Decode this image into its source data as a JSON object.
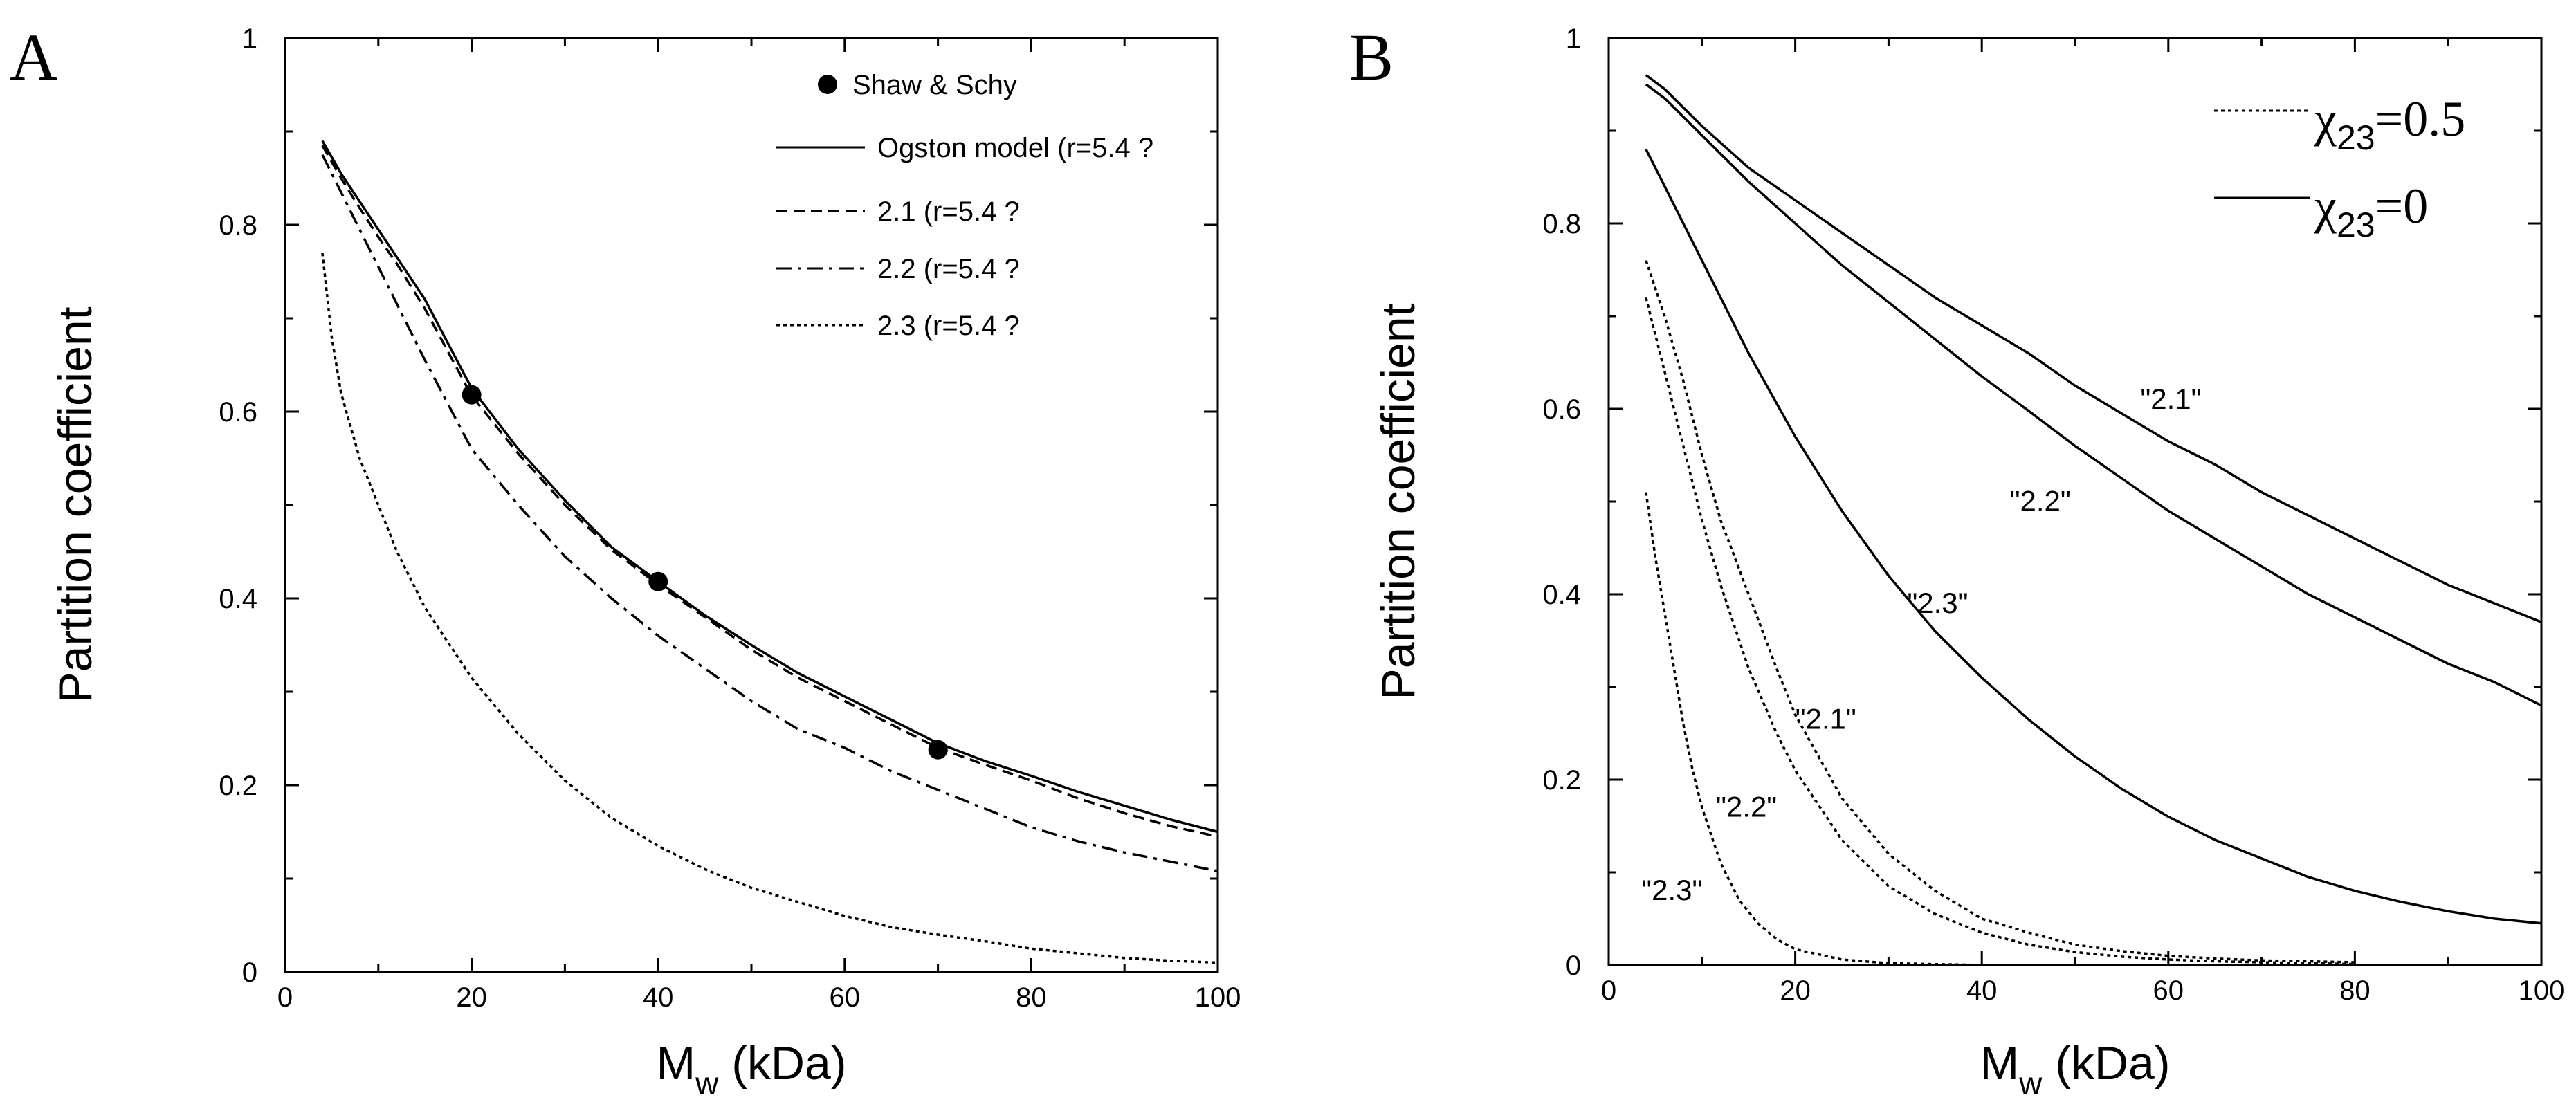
{
  "chart_data": [
    {
      "panel_label": "A",
      "type": "line",
      "xlabel_main": "M",
      "xlabel_sub": "w",
      "xlabel_rest": " (kDa)",
      "ylabel": "Partition coefficient",
      "xlim": [
        0,
        100
      ],
      "ylim": [
        0,
        1
      ],
      "xticks": [
        "0",
        "20",
        "40",
        "60",
        "80",
        "100"
      ],
      "yticks": [
        "0",
        "0.2",
        "0.4",
        "0.6",
        "0.8",
        "1"
      ],
      "legend_position": "top-right",
      "points": {
        "name": "Shaw & Schy",
        "x": [
          20,
          40,
          70
        ],
        "y": [
          0.618,
          0.418,
          0.238
        ]
      },
      "series": [
        {
          "name": "Ogston model (r=5.4 ?",
          "style": "solid",
          "x": [
            4,
            6,
            8,
            10,
            12,
            15,
            20,
            25,
            30,
            35,
            40,
            45,
            50,
            55,
            60,
            65,
            70,
            75,
            80,
            85,
            90,
            95,
            100
          ],
          "values": [
            0.89,
            0.855,
            0.825,
            0.795,
            0.765,
            0.72,
            0.625,
            0.56,
            0.505,
            0.455,
            0.418,
            0.382,
            0.35,
            0.32,
            0.295,
            0.27,
            0.245,
            0.226,
            0.21,
            0.193,
            0.178,
            0.163,
            0.15
          ]
        },
        {
          "name": "2.1 (r=5.4 ?",
          "style": "dashed",
          "x": [
            4,
            6,
            8,
            10,
            12,
            15,
            20,
            25,
            30,
            35,
            40,
            45,
            50,
            55,
            60,
            65,
            70,
            75,
            80,
            85,
            90,
            95,
            100
          ],
          "values": [
            0.885,
            0.85,
            0.818,
            0.787,
            0.758,
            0.71,
            0.617,
            0.555,
            0.5,
            0.452,
            0.415,
            0.38,
            0.345,
            0.315,
            0.29,
            0.265,
            0.24,
            0.222,
            0.205,
            0.186,
            0.17,
            0.156,
            0.145
          ]
        },
        {
          "name": "2.2 (r=5.4 ?",
          "style": "dashdot",
          "x": [
            4,
            6,
            8,
            10,
            12,
            15,
            20,
            25,
            30,
            35,
            40,
            45,
            50,
            55,
            60,
            65,
            70,
            75,
            80,
            85,
            90,
            95,
            100
          ],
          "values": [
            0.875,
            0.835,
            0.795,
            0.755,
            0.715,
            0.655,
            0.56,
            0.5,
            0.445,
            0.4,
            0.36,
            0.325,
            0.29,
            0.26,
            0.24,
            0.215,
            0.195,
            0.175,
            0.155,
            0.14,
            0.128,
            0.118,
            0.108
          ]
        },
        {
          "name": "2.3 (r=5.4 ?",
          "style": "dotted",
          "x": [
            4,
            5,
            6,
            8,
            10,
            12,
            15,
            20,
            25,
            30,
            35,
            40,
            45,
            50,
            55,
            60,
            65,
            70,
            75,
            80,
            85,
            90,
            95,
            100
          ],
          "values": [
            0.77,
            0.68,
            0.62,
            0.55,
            0.5,
            0.45,
            0.39,
            0.315,
            0.255,
            0.205,
            0.165,
            0.135,
            0.11,
            0.09,
            0.075,
            0.06,
            0.048,
            0.04,
            0.033,
            0.025,
            0.02,
            0.015,
            0.012,
            0.01
          ]
        }
      ]
    },
    {
      "panel_label": "B",
      "type": "line",
      "xlabel_main": "M",
      "xlabel_sub": "w",
      "xlabel_rest": " (kDa)",
      "ylabel": "Partition coefficient",
      "xlim": [
        0,
        100
      ],
      "ylim": [
        0,
        1
      ],
      "xticks": [
        "0",
        "20",
        "40",
        "60",
        "80",
        "100"
      ],
      "yticks": [
        "0",
        "0.2",
        "0.4",
        "0.6",
        "0.8",
        "1"
      ],
      "legend_position": "top-right",
      "legend": [
        {
          "style": "dotted",
          "symbol": "χ",
          "sub": "23",
          "value": "=0.5"
        },
        {
          "style": "solid",
          "symbol": "χ",
          "sub": "23",
          "value": "=0"
        }
      ],
      "annotations": [
        {
          "text": "\"2.1\"",
          "x": 57,
          "y": 0.6
        },
        {
          "text": "\"2.2\"",
          "x": 43,
          "y": 0.49
        },
        {
          "text": "\"2.3\"",
          "x": 32,
          "y": 0.38
        },
        {
          "text": "\"2.1\"",
          "x": 20,
          "y": 0.255
        },
        {
          "text": "\"2.2\"",
          "x": 11.5,
          "y": 0.16
        },
        {
          "text": "\"2.3\"",
          "x": 3.5,
          "y": 0.07
        }
      ],
      "series": [
        {
          "name": "\"2.1\" χ23=0",
          "style": "solid",
          "x": [
            4,
            6,
            8,
            10,
            15,
            20,
            25,
            30,
            35,
            40,
            45,
            50,
            55,
            60,
            65,
            70,
            75,
            80,
            85,
            90,
            95,
            100
          ],
          "values": [
            0.96,
            0.945,
            0.925,
            0.905,
            0.86,
            0.825,
            0.79,
            0.755,
            0.72,
            0.69,
            0.66,
            0.625,
            0.595,
            0.565,
            0.54,
            0.51,
            0.485,
            0.46,
            0.435,
            0.41,
            0.39,
            0.37
          ]
        },
        {
          "name": "\"2.2\" χ23=0",
          "style": "solid",
          "x": [
            4,
            6,
            8,
            10,
            15,
            20,
            25,
            30,
            35,
            40,
            45,
            50,
            55,
            60,
            65,
            70,
            75,
            80,
            85,
            90,
            95,
            100
          ],
          "values": [
            0.95,
            0.935,
            0.915,
            0.895,
            0.845,
            0.8,
            0.755,
            0.715,
            0.675,
            0.635,
            0.598,
            0.56,
            0.525,
            0.49,
            0.46,
            0.43,
            0.4,
            0.375,
            0.35,
            0.325,
            0.305,
            0.28
          ]
        },
        {
          "name": "\"2.3\" χ23=0",
          "style": "solid",
          "x": [
            4,
            6,
            8,
            10,
            12,
            15,
            20,
            25,
            30,
            35,
            40,
            45,
            50,
            55,
            60,
            65,
            70,
            75,
            80,
            85,
            90,
            95,
            100
          ],
          "values": [
            0.88,
            0.84,
            0.8,
            0.76,
            0.72,
            0.66,
            0.57,
            0.49,
            0.42,
            0.36,
            0.31,
            0.265,
            0.225,
            0.19,
            0.16,
            0.135,
            0.115,
            0.095,
            0.08,
            0.068,
            0.058,
            0.05,
            0.045
          ]
        },
        {
          "name": "\"2.1\" χ23=0.5",
          "style": "dotted",
          "x": [
            4,
            6,
            8,
            10,
            12,
            15,
            18,
            20,
            25,
            30,
            35,
            40,
            45,
            50,
            55,
            60,
            65,
            70,
            75,
            80
          ],
          "values": [
            0.76,
            0.7,
            0.63,
            0.55,
            0.48,
            0.4,
            0.32,
            0.27,
            0.18,
            0.12,
            0.08,
            0.05,
            0.035,
            0.022,
            0.015,
            0.01,
            0.007,
            0.005,
            0.004,
            0.003
          ]
        },
        {
          "name": "\"2.2\" χ23=0.5",
          "style": "dotted",
          "x": [
            4,
            6,
            8,
            10,
            12,
            15,
            18,
            20,
            25,
            30,
            35,
            40,
            45,
            50,
            55,
            60,
            65,
            70,
            75,
            80
          ],
          "values": [
            0.72,
            0.64,
            0.56,
            0.48,
            0.41,
            0.32,
            0.25,
            0.21,
            0.135,
            0.085,
            0.055,
            0.035,
            0.022,
            0.014,
            0.009,
            0.006,
            0.004,
            0.003,
            0.002,
            0.001
          ]
        },
        {
          "name": "\"2.3\" χ23=0.5",
          "style": "dotted",
          "x": [
            4,
            5,
            6,
            7,
            8,
            9,
            10,
            12,
            14,
            16,
            18,
            20,
            25,
            30,
            35,
            40
          ],
          "values": [
            0.51,
            0.44,
            0.38,
            0.32,
            0.26,
            0.21,
            0.17,
            0.11,
            0.07,
            0.045,
            0.028,
            0.017,
            0.006,
            0.002,
            0.001,
            0.0
          ]
        }
      ]
    }
  ]
}
